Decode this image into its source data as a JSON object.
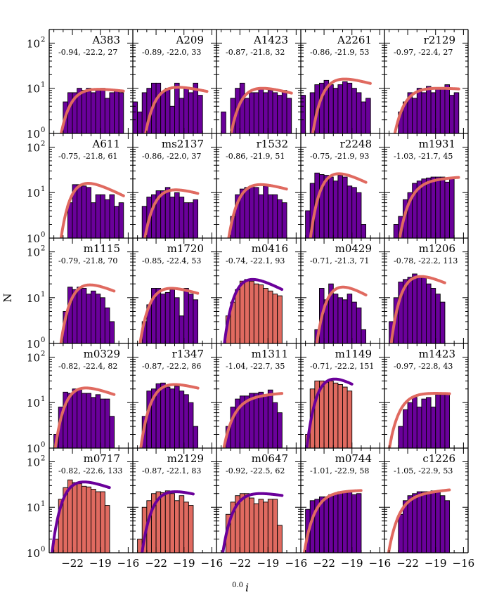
{
  "chart_data": {
    "type": "histogram-grid",
    "ylabel": "N",
    "xlabel_sup": "0.0",
    "xlabel_var": "i",
    "x_range": [
      -24.5,
      -15.5
    ],
    "y_range_log": [
      1,
      200
    ],
    "x_ticks": [
      -22,
      -19,
      -16
    ],
    "x_tick_labels": [
      "−22",
      "−19",
      "−16"
    ],
    "y_ticks": [
      1,
      10,
      100
    ],
    "y_tick_labels": [
      "10",
      "10",
      "10"
    ],
    "y_tick_exponents": [
      "0",
      "1",
      "2"
    ],
    "bin_width": 0.5,
    "colors": {
      "purple": "#6a009a",
      "salmon": "#e06a60",
      "edge": "#000000"
    },
    "panels": [
      {
        "name": "A383",
        "params": "-0.94, -22.2, 27",
        "style": "a",
        "bin_start": -23.5,
        "counts": [
          1,
          5,
          8,
          8,
          10,
          9,
          10,
          8,
          9,
          10,
          6,
          8,
          9,
          8
        ],
        "fit": {
          "ms": -22.2,
          "alpha": -0.94,
          "amp": 9.5
        }
      },
      {
        "name": "A209",
        "params": "-0.89, -22.0, 33",
        "style": "a",
        "bin_start": -24.5,
        "counts": [
          5,
          3,
          8,
          10,
          13,
          13,
          8,
          10,
          4,
          13,
          6,
          10,
          8,
          13,
          7,
          1
        ],
        "fit": {
          "ms": -22.0,
          "alpha": -0.89,
          "amp": 10.5
        }
      },
      {
        "name": "A1423",
        "params": "-0.87, -21.8, 32",
        "style": "a",
        "bin_start": -24.0,
        "counts": [
          3,
          1,
          6,
          10,
          13,
          6,
          8,
          8,
          10,
          8,
          9,
          8,
          7,
          9,
          6
        ],
        "fit": {
          "ms": -21.8,
          "alpha": -0.87,
          "amp": 10
        }
      },
      {
        "name": "A2261",
        "params": "-0.86, -21.9, 53",
        "style": "a",
        "bin_start": -24.5,
        "counts": [
          7,
          1,
          8,
          12,
          13,
          15,
          12,
          10,
          12,
          14,
          13,
          10,
          8,
          5,
          6
        ],
        "fit": {
          "ms": -21.9,
          "alpha": -0.86,
          "amp": 16
        }
      },
      {
        "name": "r2129",
        "params": "-0.97, -22.4, 27",
        "style": "a",
        "bin_start": -23.5,
        "counts": [
          1,
          3,
          5,
          8,
          6,
          10,
          8,
          11,
          8,
          10,
          10,
          12,
          7,
          8
        ],
        "fit": {
          "ms": -22.4,
          "alpha": -0.97,
          "amp": 10
        }
      },
      {
        "name": "A611",
        "params": "-0.75, -21.8, 61",
        "style": "a",
        "bin_start": -23.0,
        "counts": [
          1,
          6,
          15,
          15,
          14,
          13,
          6,
          9,
          9,
          7,
          9,
          5,
          6
        ],
        "fit": {
          "ms": -21.8,
          "alpha": -0.75,
          "amp": 16
        }
      },
      {
        "name": "ms2137",
        "params": "-0.86, -22.0, 37",
        "style": "a",
        "bin_start": -24.0,
        "counts": [
          1,
          5,
          8,
          9,
          11,
          11,
          13,
          8,
          10,
          8,
          6,
          6,
          7
        ],
        "fit": {
          "ms": -22.0,
          "alpha": -0.86,
          "amp": 11.5
        }
      },
      {
        "name": "r1532",
        "params": "-0.86, -21.9, 51",
        "style": "a",
        "bin_start": -23.5,
        "counts": [
          1,
          3,
          9,
          12,
          13,
          14,
          13,
          9,
          14,
          9,
          9,
          7,
          6
        ],
        "fit": {
          "ms": -21.9,
          "alpha": -0.86,
          "amp": 15
        }
      },
      {
        "name": "r2248",
        "params": "-0.75, -21.9, 93",
        "style": "a",
        "bin_start": -24.0,
        "counts": [
          4,
          16,
          27,
          25,
          24,
          22,
          18,
          24,
          22,
          14,
          13,
          10,
          2
        ],
        "fit": {
          "ms": -21.9,
          "alpha": -0.75,
          "amp": 26
        }
      },
      {
        "name": "m1931",
        "params": "-1.03, -21.7, 45",
        "style": "a",
        "bin_start": -23.5,
        "counts": [
          2,
          3,
          7,
          10,
          16,
          18,
          20,
          21,
          22,
          22,
          22,
          17,
          20,
          1
        ],
        "fit": {
          "ms": -21.7,
          "alpha": -1.03,
          "amp": 22
        }
      },
      {
        "name": "m1115",
        "params": "-0.79, -21.8, 70",
        "style": "a",
        "bin_start": -23.5,
        "counts": [
          1,
          5,
          17,
          15,
          17,
          16,
          12,
          14,
          12,
          10,
          6,
          3
        ],
        "fit": {
          "ms": -21.8,
          "alpha": -0.79,
          "amp": 19
        }
      },
      {
        "name": "m1720",
        "params": "-0.85, -22.4, 53",
        "style": "a",
        "bin_start": -24.0,
        "counts": [
          1,
          3,
          7,
          16,
          16,
          12,
          13,
          15,
          10,
          4,
          16,
          12,
          9
        ],
        "fit": {
          "ms": -22.4,
          "alpha": -0.85,
          "amp": 16
        }
      },
      {
        "name": "m0416",
        "params": "-0.74, -22.1, 93",
        "style": "b",
        "bin_start": -23.5,
        "counts": [
          4,
          8,
          15,
          23,
          25,
          23,
          20,
          19,
          16,
          14,
          12,
          11
        ],
        "fit": {
          "ms": -22.1,
          "alpha": -0.74,
          "amp": 25
        }
      },
      {
        "name": "m0429",
        "params": "-0.71, -21.3, 71",
        "style": "a",
        "bin_start": -23.5,
        "counts": [
          1,
          2,
          16,
          9,
          20,
          12,
          10,
          9,
          12,
          8,
          6,
          2
        ],
        "fit": {
          "ms": -21.3,
          "alpha": -0.71,
          "amp": 17
        }
      },
      {
        "name": "m1206",
        "params": "-0.78, -22.2, 113",
        "style": "a",
        "bin_start": -24.0,
        "counts": [
          3,
          10,
          22,
          25,
          28,
          33,
          29,
          28,
          20,
          16,
          12,
          8
        ],
        "fit": {
          "ms": -22.2,
          "alpha": -0.78,
          "amp": 29
        }
      },
      {
        "name": "m0329",
        "params": "-0.82, -22.4, 82",
        "style": "a",
        "bin_start": -24.0,
        "counts": [
          2,
          8,
          17,
          16,
          20,
          19,
          16,
          16,
          13,
          15,
          12,
          12,
          5
        ],
        "fit": {
          "ms": -22.4,
          "alpha": -0.82,
          "amp": 21
        }
      },
      {
        "name": "r1347",
        "params": "-0.87, -22.2, 86",
        "style": "a",
        "bin_start": -24.0,
        "counts": [
          1,
          5,
          18,
          20,
          26,
          27,
          22,
          20,
          23,
          18,
          15,
          10,
          3
        ],
        "fit": {
          "ms": -22.2,
          "alpha": -0.87,
          "amp": 25
        }
      },
      {
        "name": "m1311",
        "params": "-1.04, -22.7, 35",
        "style": "a",
        "bin_start": -24.0,
        "counts": [
          1,
          3,
          8,
          12,
          14,
          14,
          16,
          16,
          17,
          15,
          19,
          10,
          6
        ],
        "fit": {
          "ms": -22.7,
          "alpha": -1.04,
          "amp": 17
        }
      },
      {
        "name": "m1149",
        "params": "-0.71, -22.2, 151",
        "style": "b",
        "bin_start": -24.0,
        "counts": [
          2,
          20,
          30,
          30,
          28,
          30,
          27,
          25,
          22,
          18
        ],
        "fit": {
          "ms": -22.2,
          "alpha": -0.71,
          "amp": 33
        }
      },
      {
        "name": "m1423",
        "params": "-0.97, -22.8, 43",
        "style": "a",
        "bin_start": -23.5,
        "counts": [
          1,
          3,
          7,
          10,
          13,
          8,
          12,
          13,
          8,
          15,
          15,
          15
        ],
        "fit": {
          "ms": -22.8,
          "alpha": -0.97,
          "amp": 16
        }
      },
      {
        "name": "m0717",
        "params": "-0.82, -22.6, 133",
        "style": "b",
        "bin_start": -24.0,
        "counts": [
          2,
          15,
          27,
          40,
          35,
          33,
          29,
          28,
          25,
          22,
          22,
          11
        ],
        "fit": {
          "ms": -22.6,
          "alpha": -0.82,
          "amp": 36
        }
      },
      {
        "name": "m2129",
        "params": "-0.87, -22.1, 83",
        "style": "b",
        "bin_start": -24.0,
        "counts": [
          2,
          10,
          14,
          20,
          22,
          21,
          23,
          20,
          14,
          18,
          13,
          11
        ],
        "fit": {
          "ms": -22.1,
          "alpha": -0.87,
          "amp": 22
        }
      },
      {
        "name": "m0647",
        "params": "-0.92, -22.5, 62",
        "style": "b",
        "bin_start": -24.0,
        "counts": [
          1,
          7,
          13,
          18,
          20,
          20,
          16,
          12,
          15,
          13,
          15,
          15,
          4
        ],
        "fit": {
          "ms": -22.5,
          "alpha": -0.92,
          "amp": 20
        }
      },
      {
        "name": "m0744",
        "params": "-1.01, -22.9, 58",
        "style": "a",
        "bin_start": -24.5,
        "counts": [
          1,
          9,
          14,
          15,
          17,
          17,
          19,
          20,
          22,
          21,
          22,
          19,
          20
        ],
        "fit": {
          "ms": -22.9,
          "alpha": -1.01,
          "amp": 24
        }
      },
      {
        "name": "c1226",
        "params": "-1.05, -22.9, 53",
        "style": "a",
        "bin_start": -23.5,
        "counts": [
          1,
          7,
          14,
          18,
          20,
          22,
          22,
          22,
          23,
          22,
          18,
          14
        ],
        "fit": {
          "ms": -22.9,
          "alpha": -1.05,
          "amp": 26
        }
      }
    ]
  }
}
